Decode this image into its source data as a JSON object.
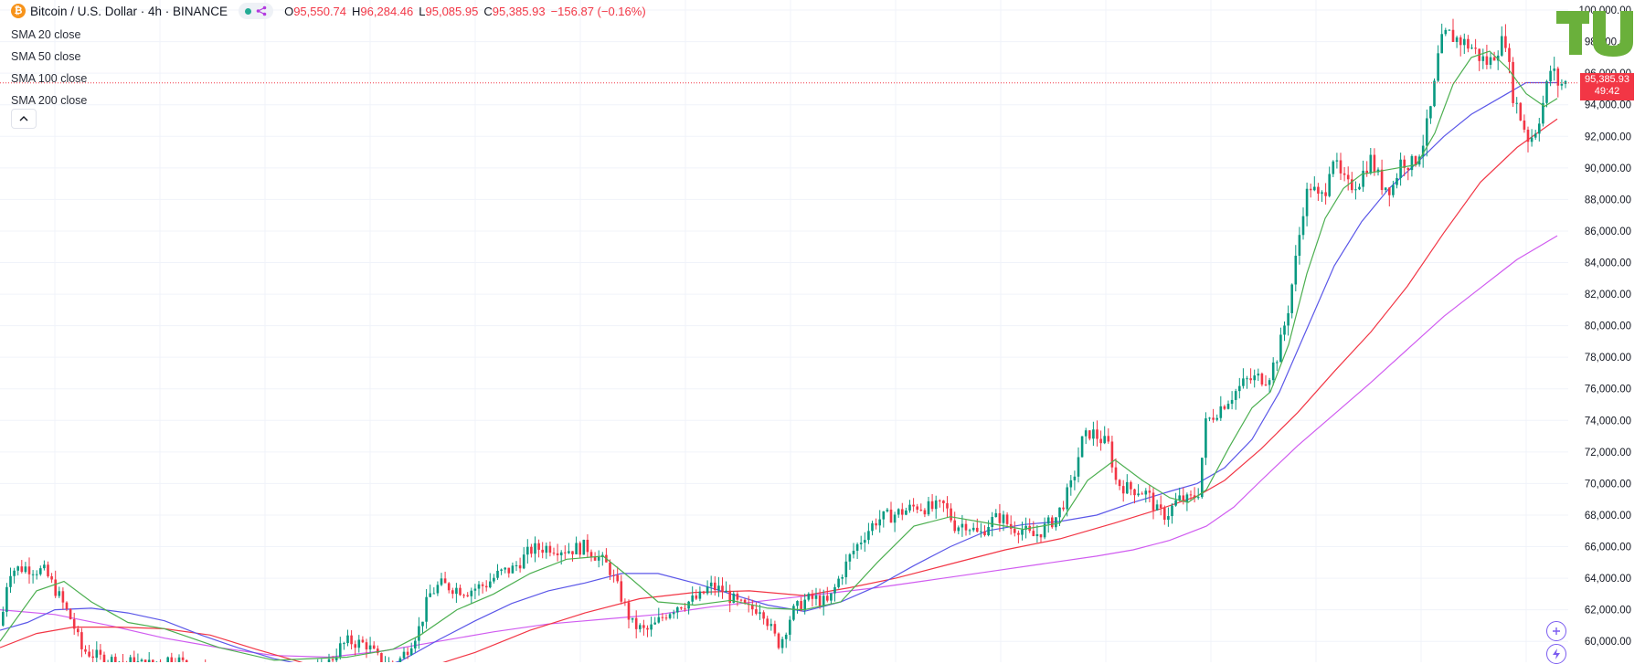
{
  "header": {
    "symbol": "Bitcoin / U.S. Dollar · 4h · BINANCE",
    "logo_icon": "bitcoin-icon",
    "logo_color": "#f7931a",
    "status_dot_color": "#22ab94",
    "status_icon": "share-icon",
    "open_label": "O",
    "open_value": "95,550.74",
    "high_label": "H",
    "high_value": "96,284.46",
    "low_label": "L",
    "low_value": "95,085.95",
    "close_label": "C",
    "close_value": "95,385.93",
    "change_value": "−156.87 (−0.16%)",
    "down_color": "#f23645"
  },
  "legend": {
    "sma20": "SMA 20 close",
    "sma50": "SMA 50 close",
    "sma100": "SMA 100 close",
    "sma200": "SMA 200 close",
    "collapse_icon": "chevron-up-icon"
  },
  "price_tag": {
    "price": "95,385.93",
    "countdown": "49:42"
  },
  "watermark": {
    "icon": "tradingview-logo",
    "text": "TU",
    "color": "#6ab03b"
  },
  "tools": {
    "add_icon": "plus-circle-icon",
    "alert_icon": "lightning-icon"
  },
  "chart_data": {
    "type": "candlestick",
    "title": "Bitcoin / U.S. Dollar · 4h · BINANCE",
    "ylim": [
      58680,
      100640
    ],
    "yticks": [
      "100,000.00",
      "98,000.00",
      "96,000.00",
      "94,000.00",
      "92,000.00",
      "90,000.00",
      "88,000.00",
      "86,000.00",
      "84,000.00",
      "82,000.00",
      "80,000.00",
      "78,000.00",
      "76,000.00",
      "74,000.00",
      "72,000.00",
      "70,000.00",
      "68,000.00",
      "66,000.00",
      "64,000.00",
      "62,000.00",
      "60,000.00"
    ],
    "ytick_values": [
      100000,
      98000,
      96000,
      94000,
      92000,
      90000,
      88000,
      86000,
      84000,
      82000,
      80000,
      78000,
      76000,
      74000,
      72000,
      70000,
      68000,
      66000,
      64000,
      62000,
      60000
    ],
    "last_price": 95385.93,
    "grid": true,
    "legend_position": "top-left",
    "up_color": "#089981",
    "down_color": "#f23645",
    "price_path": [
      [
        0,
        61000
      ],
      [
        8,
        64500
      ],
      [
        28,
        64700
      ],
      [
        48,
        64400
      ],
      [
        62,
        63000
      ],
      [
        78,
        61200
      ],
      [
        88,
        59500
      ],
      [
        110,
        58900
      ],
      [
        160,
        58500
      ],
      [
        180,
        58900
      ],
      [
        194,
        58800
      ],
      [
        215,
        58000
      ],
      [
        280,
        57700
      ],
      [
        350,
        58000
      ],
      [
        372,
        59700
      ],
      [
        380,
        60000
      ],
      [
        400,
        59800
      ],
      [
        415,
        58700
      ],
      [
        432,
        58500
      ],
      [
        442,
        59300
      ],
      [
        458,
        60900
      ],
      [
        468,
        62900
      ],
      [
        480,
        63600
      ],
      [
        510,
        63200
      ],
      [
        530,
        63600
      ],
      [
        545,
        64300
      ],
      [
        560,
        64600
      ],
      [
        580,
        65800
      ],
      [
        600,
        66000
      ],
      [
        620,
        65800
      ],
      [
        640,
        66000
      ],
      [
        665,
        64700
      ],
      [
        680,
        62600
      ],
      [
        690,
        61100
      ],
      [
        705,
        60600
      ],
      [
        715,
        61000
      ],
      [
        728,
        61800
      ],
      [
        740,
        62300
      ],
      [
        752,
        62500
      ],
      [
        765,
        62800
      ],
      [
        775,
        63500
      ],
      [
        790,
        63200
      ],
      [
        805,
        62400
      ],
      [
        818,
        62000
      ],
      [
        832,
        62200
      ],
      [
        845,
        60400
      ],
      [
        852,
        59800
      ],
      [
        865,
        61800
      ],
      [
        880,
        62600
      ],
      [
        890,
        62700
      ],
      [
        905,
        62400
      ],
      [
        917,
        64000
      ],
      [
        930,
        65500
      ],
      [
        945,
        66800
      ],
      [
        958,
        67700
      ],
      [
        975,
        68000
      ],
      [
        990,
        68300
      ],
      [
        1002,
        68600
      ],
      [
        1018,
        68400
      ],
      [
        1032,
        68600
      ],
      [
        1044,
        67300
      ],
      [
        1056,
        67500
      ],
      [
        1070,
        66700
      ],
      [
        1082,
        67600
      ],
      [
        1094,
        67900
      ],
      [
        1105,
        67200
      ],
      [
        1115,
        67200
      ],
      [
        1128,
        66600
      ],
      [
        1138,
        67000
      ],
      [
        1155,
        67900
      ],
      [
        1172,
        70000
      ],
      [
        1182,
        72600
      ],
      [
        1192,
        73300
      ],
      [
        1212,
        72400
      ],
      [
        1220,
        70100
      ],
      [
        1232,
        69700
      ],
      [
        1245,
        69600
      ],
      [
        1255,
        69300
      ],
      [
        1265,
        68200
      ],
      [
        1275,
        68000
      ],
      [
        1288,
        69000
      ],
      [
        1300,
        68900
      ],
      [
        1310,
        69500
      ],
      [
        1318,
        73800
      ],
      [
        1330,
        74600
      ],
      [
        1345,
        75500
      ],
      [
        1362,
        76500
      ],
      [
        1375,
        76700
      ],
      [
        1386,
        76700
      ],
      [
        1397,
        78200
      ],
      [
        1408,
        81000
      ],
      [
        1418,
        84700
      ],
      [
        1426,
        88000
      ],
      [
        1434,
        89000
      ],
      [
        1440,
        88000
      ],
      [
        1448,
        88300
      ],
      [
        1456,
        91000
      ],
      [
        1464,
        89500
      ],
      [
        1474,
        88800
      ],
      [
        1486,
        89200
      ],
      [
        1498,
        90600
      ],
      [
        1510,
        89000
      ],
      [
        1522,
        88700
      ],
      [
        1532,
        90500
      ],
      [
        1545,
        90200
      ],
      [
        1557,
        91800
      ],
      [
        1566,
        94200
      ],
      [
        1574,
        97700
      ],
      [
        1582,
        98500
      ],
      [
        1592,
        98200
      ],
      [
        1602,
        97900
      ],
      [
        1610,
        97600
      ],
      [
        1618,
        97000
      ],
      [
        1628,
        96600
      ],
      [
        1637,
        97600
      ],
      [
        1646,
        98200
      ],
      [
        1653,
        94900
      ],
      [
        1662,
        93300
      ],
      [
        1672,
        91700
      ],
      [
        1680,
        92600
      ],
      [
        1688,
        94300
      ],
      [
        1696,
        96400
      ],
      [
        1704,
        95300
      ],
      [
        1716,
        95400
      ]
    ],
    "sma20": [
      [
        0,
        60000
      ],
      [
        40,
        63200
      ],
      [
        70,
        63800
      ],
      [
        100,
        62500
      ],
      [
        140,
        61200
      ],
      [
        180,
        60800
      ],
      [
        200,
        60400
      ],
      [
        240,
        59600
      ],
      [
        300,
        58800
      ],
      [
        380,
        59000
      ],
      [
        430,
        59500
      ],
      [
        460,
        60400
      ],
      [
        500,
        62000
      ],
      [
        540,
        63000
      ],
      [
        580,
        64300
      ],
      [
        620,
        65200
      ],
      [
        660,
        65400
      ],
      [
        690,
        64000
      ],
      [
        720,
        62500
      ],
      [
        760,
        62300
      ],
      [
        800,
        62600
      ],
      [
        840,
        62100
      ],
      [
        880,
        62000
      ],
      [
        920,
        62500
      ],
      [
        960,
        65000
      ],
      [
        1000,
        67300
      ],
      [
        1040,
        67900
      ],
      [
        1080,
        67500
      ],
      [
        1120,
        67100
      ],
      [
        1160,
        67500
      ],
      [
        1190,
        70200
      ],
      [
        1220,
        71500
      ],
      [
        1250,
        70200
      ],
      [
        1280,
        69100
      ],
      [
        1300,
        68800
      ],
      [
        1320,
        69600
      ],
      [
        1345,
        72300
      ],
      [
        1370,
        74800
      ],
      [
        1390,
        75800
      ],
      [
        1410,
        78800
      ],
      [
        1430,
        83300
      ],
      [
        1450,
        86800
      ],
      [
        1470,
        88700
      ],
      [
        1490,
        89600
      ],
      [
        1510,
        89800
      ],
      [
        1530,
        90000
      ],
      [
        1550,
        90200
      ],
      [
        1570,
        92200
      ],
      [
        1590,
        95300
      ],
      [
        1610,
        97000
      ],
      [
        1630,
        97400
      ],
      [
        1650,
        96300
      ],
      [
        1670,
        94700
      ],
      [
        1690,
        93900
      ],
      [
        1704,
        94400
      ]
    ],
    "sma50": [
      [
        0,
        60700
      ],
      [
        30,
        61200
      ],
      [
        60,
        62000
      ],
      [
        100,
        62100
      ],
      [
        140,
        61800
      ],
      [
        180,
        61300
      ],
      [
        220,
        60400
      ],
      [
        260,
        59600
      ],
      [
        300,
        58900
      ],
      [
        360,
        58200
      ],
      [
        400,
        58000
      ],
      [
        440,
        58800
      ],
      [
        480,
        60100
      ],
      [
        520,
        61300
      ],
      [
        560,
        62400
      ],
      [
        600,
        63200
      ],
      [
        640,
        63700
      ],
      [
        680,
        64300
      ],
      [
        720,
        64300
      ],
      [
        760,
        63700
      ],
      [
        800,
        63000
      ],
      [
        840,
        62300
      ],
      [
        880,
        61900
      ],
      [
        920,
        62500
      ],
      [
        960,
        63500
      ],
      [
        1000,
        64800
      ],
      [
        1040,
        66000
      ],
      [
        1080,
        67000
      ],
      [
        1120,
        67400
      ],
      [
        1160,
        67600
      ],
      [
        1200,
        68000
      ],
      [
        1240,
        68800
      ],
      [
        1280,
        69500
      ],
      [
        1310,
        70000
      ],
      [
        1340,
        71000
      ],
      [
        1370,
        72800
      ],
      [
        1400,
        75800
      ],
      [
        1430,
        79800
      ],
      [
        1460,
        83800
      ],
      [
        1490,
        86600
      ],
      [
        1520,
        88700
      ],
      [
        1550,
        90300
      ],
      [
        1580,
        92000
      ],
      [
        1610,
        93400
      ],
      [
        1640,
        94400
      ],
      [
        1670,
        95400
      ],
      [
        1704,
        95400
      ]
    ],
    "sma100": [
      [
        0,
        59600
      ],
      [
        40,
        60500
      ],
      [
        80,
        60900
      ],
      [
        130,
        60900
      ],
      [
        180,
        60800
      ],
      [
        230,
        60400
      ],
      [
        280,
        59500
      ],
      [
        340,
        58500
      ],
      [
        400,
        57900
      ],
      [
        460,
        58200
      ],
      [
        520,
        59300
      ],
      [
        580,
        60700
      ],
      [
        640,
        61800
      ],
      [
        700,
        62700
      ],
      [
        760,
        63100
      ],
      [
        820,
        63200
      ],
      [
        880,
        62900
      ],
      [
        930,
        63400
      ],
      [
        980,
        64000
      ],
      [
        1040,
        64900
      ],
      [
        1100,
        65800
      ],
      [
        1160,
        66500
      ],
      [
        1220,
        67500
      ],
      [
        1270,
        68400
      ],
      [
        1310,
        69200
      ],
      [
        1340,
        70200
      ],
      [
        1380,
        72200
      ],
      [
        1420,
        74500
      ],
      [
        1460,
        77100
      ],
      [
        1500,
        79600
      ],
      [
        1540,
        82500
      ],
      [
        1580,
        85900
      ],
      [
        1620,
        89100
      ],
      [
        1660,
        91300
      ],
      [
        1704,
        93100
      ]
    ],
    "sma200": [
      [
        0,
        62000
      ],
      [
        60,
        61700
      ],
      [
        120,
        61000
      ],
      [
        180,
        60200
      ],
      [
        240,
        59600
      ],
      [
        300,
        59100
      ],
      [
        360,
        59000
      ],
      [
        420,
        59400
      ],
      [
        480,
        60000
      ],
      [
        540,
        60600
      ],
      [
        600,
        61100
      ],
      [
        660,
        61400
      ],
      [
        720,
        61700
      ],
      [
        780,
        62200
      ],
      [
        840,
        62600
      ],
      [
        900,
        63000
      ],
      [
        960,
        63400
      ],
      [
        1020,
        63900
      ],
      [
        1080,
        64400
      ],
      [
        1140,
        64900
      ],
      [
        1200,
        65400
      ],
      [
        1240,
        65800
      ],
      [
        1280,
        66400
      ],
      [
        1320,
        67300
      ],
      [
        1350,
        68500
      ],
      [
        1380,
        70200
      ],
      [
        1420,
        72400
      ],
      [
        1460,
        74400
      ],
      [
        1500,
        76400
      ],
      [
        1540,
        78500
      ],
      [
        1580,
        80600
      ],
      [
        1620,
        82400
      ],
      [
        1660,
        84200
      ],
      [
        1704,
        85700
      ]
    ]
  },
  "colors": {
    "sma20": "#4caf50",
    "sma50": "#5b57e8",
    "sma100": "#f23645",
    "sma200": "#d05cf0",
    "grid": "#f0f3fa",
    "axis_text": "#131722"
  }
}
